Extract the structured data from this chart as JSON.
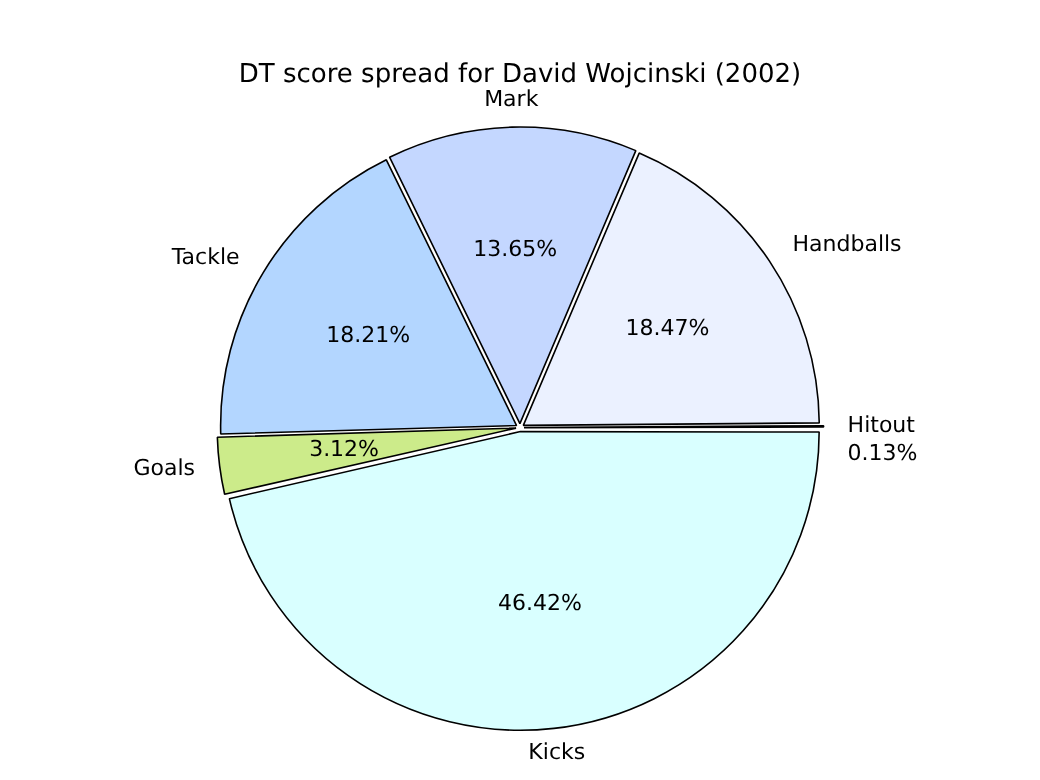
{
  "chart_data": {
    "type": "pie",
    "title": "DT score spread for David Wojcinski (2002)",
    "categories": [
      "Kicks",
      "Goals",
      "Tackle",
      "Mark",
      "Handballs",
      "Hitout"
    ],
    "values": [
      46.42,
      3.12,
      18.21,
      13.65,
      18.47,
      0.13
    ],
    "value_labels": [
      "46.42%",
      "3.12%",
      "18.21%",
      "13.65%",
      "18.47%",
      "0.13%"
    ],
    "colors": [
      "#d9ffff",
      "#cceb8a",
      "#b3d6ff",
      "#c4d7ff",
      "#ebf1ff",
      "#f0f0f0"
    ],
    "legend": false
  }
}
